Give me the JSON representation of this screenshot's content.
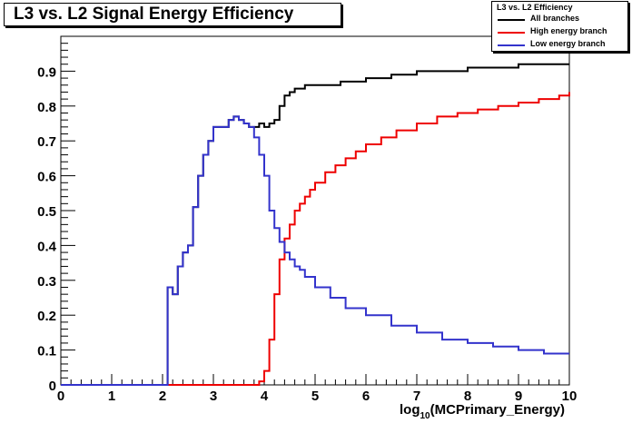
{
  "chart_data": {
    "type": "line",
    "title": "L3 vs. L2 Signal Energy Efficiency",
    "xlabel": "log10(MCPrimary_Energy)",
    "xlabel_main": "log",
    "xlabel_sub": "10",
    "xlabel_rest": "(MCPrimary_Energy)",
    "ylabel": "",
    "xlim": [
      0,
      10
    ],
    "ylim": [
      0,
      1.0
    ],
    "x_ticks": [
      "0",
      "1",
      "2",
      "3",
      "4",
      "5",
      "6",
      "7",
      "8",
      "9",
      "10"
    ],
    "y_ticks": [
      "0",
      "0.1",
      "0.2",
      "0.3",
      "0.4",
      "0.5",
      "0.6",
      "0.7",
      "0.8",
      "0.9"
    ],
    "grid": false,
    "legend_position": "top-right",
    "legend_title": "L3 vs. L2 Efficiency",
    "series": [
      {
        "name": "All branches",
        "color": "#000000",
        "x": [
          2.1,
          2.2,
          2.3,
          2.4,
          2.5,
          2.6,
          2.7,
          2.8,
          2.9,
          3.0,
          3.1,
          3.2,
          3.3,
          3.4,
          3.5,
          3.6,
          3.7,
          3.8,
          3.9,
          4.0,
          4.1,
          4.2,
          4.3,
          4.4,
          4.5,
          4.6,
          4.7,
          4.8,
          5.0,
          5.5,
          6.0,
          6.5,
          7.0,
          7.5,
          8.0,
          8.5,
          9.0,
          9.5,
          10.0
        ],
        "values": [
          0.28,
          0.26,
          0.34,
          0.38,
          0.4,
          0.51,
          0.6,
          0.66,
          0.7,
          0.74,
          0.74,
          0.74,
          0.76,
          0.77,
          0.76,
          0.75,
          0.74,
          0.74,
          0.75,
          0.74,
          0.75,
          0.76,
          0.8,
          0.83,
          0.84,
          0.85,
          0.85,
          0.86,
          0.86,
          0.87,
          0.88,
          0.89,
          0.9,
          0.9,
          0.91,
          0.91,
          0.92,
          0.92,
          0.92
        ]
      },
      {
        "name": "High energy branch",
        "color": "#ee0000",
        "x": [
          2.1,
          3.8,
          3.9,
          4.0,
          4.1,
          4.2,
          4.3,
          4.4,
          4.5,
          4.6,
          4.7,
          4.8,
          4.9,
          5.0,
          5.2,
          5.4,
          5.6,
          5.8,
          6.0,
          6.3,
          6.6,
          7.0,
          7.4,
          7.8,
          8.2,
          8.6,
          9.0,
          9.4,
          9.8,
          10.0
        ],
        "values": [
          0.0,
          0.0,
          0.01,
          0.04,
          0.13,
          0.26,
          0.36,
          0.42,
          0.46,
          0.5,
          0.52,
          0.54,
          0.56,
          0.58,
          0.61,
          0.63,
          0.65,
          0.67,
          0.69,
          0.71,
          0.73,
          0.75,
          0.77,
          0.78,
          0.79,
          0.8,
          0.81,
          0.82,
          0.83,
          0.84
        ]
      },
      {
        "name": "Low energy branch",
        "color": "#3333cc",
        "x": [
          0.0,
          2.1,
          2.2,
          2.3,
          2.4,
          2.5,
          2.6,
          2.7,
          2.8,
          2.9,
          3.0,
          3.1,
          3.2,
          3.3,
          3.4,
          3.5,
          3.6,
          3.7,
          3.8,
          3.9,
          4.0,
          4.1,
          4.2,
          4.3,
          4.4,
          4.5,
          4.6,
          4.7,
          4.8,
          5.0,
          5.3,
          5.6,
          6.0,
          6.5,
          7.0,
          7.5,
          8.0,
          8.5,
          9.0,
          9.5,
          10.0
        ],
        "values": [
          0.0,
          0.28,
          0.26,
          0.34,
          0.38,
          0.4,
          0.51,
          0.6,
          0.66,
          0.7,
          0.74,
          0.74,
          0.74,
          0.76,
          0.77,
          0.76,
          0.75,
          0.74,
          0.71,
          0.66,
          0.6,
          0.5,
          0.45,
          0.41,
          0.38,
          0.36,
          0.34,
          0.33,
          0.31,
          0.28,
          0.25,
          0.22,
          0.2,
          0.17,
          0.15,
          0.13,
          0.12,
          0.11,
          0.1,
          0.09,
          0.09
        ]
      }
    ]
  }
}
